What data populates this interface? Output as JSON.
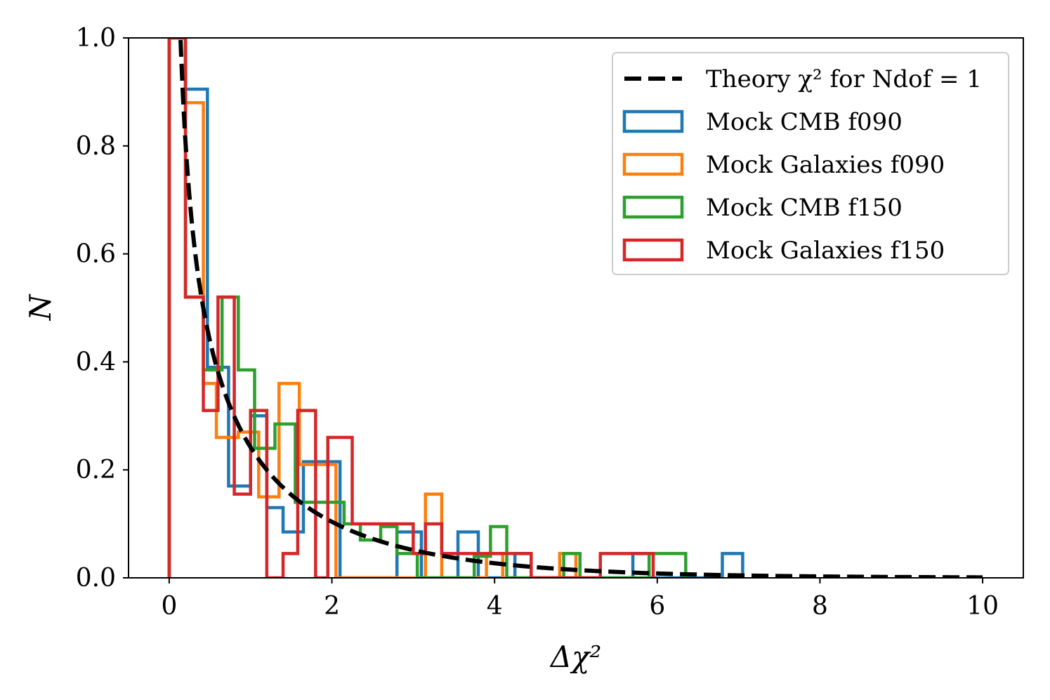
{
  "chart_data": {
    "type": "histogram-step",
    "xlabel": "Δχ²",
    "ylabel": "N",
    "xlim": [
      -0.5,
      10.5
    ],
    "ylim": [
      0,
      1.0
    ],
    "xticks": [
      "0",
      "2",
      "4",
      "6",
      "8",
      "10"
    ],
    "yticks": [
      "0.0",
      "0.2",
      "0.4",
      "0.6",
      "0.8",
      "1.0"
    ],
    "grid": false,
    "legend_position": "top-right",
    "series": [
      {
        "name": "Mock CMB f090",
        "color": "#1f77b4",
        "edges": [
          0,
          0.2,
          0.47,
          0.73,
          1.0,
          1.2,
          1.4,
          1.65,
          2.1,
          2.35,
          2.8,
          3.1,
          3.55,
          3.8,
          4.25,
          4.45,
          5.7,
          5.9,
          6.8,
          7.05
        ],
        "heights": [
          1.0,
          0.905,
          0.39,
          0.17,
          0.3,
          0.13,
          0.085,
          0.215,
          0.0,
          0.0,
          0.085,
          0.0,
          0.085,
          0.0,
          0.045,
          0.0,
          0.045,
          0.0,
          0.045
        ]
      },
      {
        "name": "Mock Galaxies f090",
        "color": "#ff7f0e",
        "edges": [
          0,
          0.2,
          0.42,
          0.58,
          0.85,
          1.1,
          1.35,
          1.6,
          2.05,
          3.15,
          3.35,
          3.55,
          3.9,
          4.1,
          4.8,
          5.0
        ],
        "heights": [
          1.0,
          0.88,
          0.36,
          0.26,
          0.27,
          0.15,
          0.36,
          0.21,
          0.0,
          0.155,
          0.0,
          0.0,
          0.045,
          0.0,
          0.045
        ]
      },
      {
        "name": "Mock CMB f150",
        "color": "#2ca02c",
        "edges": [
          0,
          0.2,
          0.42,
          0.65,
          0.85,
          1.05,
          1.3,
          1.55,
          1.95,
          2.15,
          2.35,
          2.6,
          2.8,
          3.05,
          3.75,
          3.95,
          4.15,
          4.85,
          5.05,
          5.3,
          5.9,
          6.35
        ],
        "heights": [
          1.0,
          0.52,
          0.385,
          0.52,
          0.385,
          0.24,
          0.285,
          0.14,
          0.14,
          0.1,
          0.07,
          0.095,
          0.045,
          0.0,
          0.04,
          0.095,
          0.0,
          0.045,
          0.0,
          0.0,
          0.045
        ]
      },
      {
        "name": "Mock Galaxies f150",
        "color": "#d62728",
        "edges": [
          0,
          0.2,
          0.42,
          0.6,
          0.8,
          1.0,
          1.2,
          1.4,
          1.58,
          1.8,
          1.95,
          2.25,
          2.65,
          2.8,
          3.0,
          3.15,
          3.35,
          3.55,
          3.85,
          4.25,
          4.45,
          5.3,
          5.55,
          5.75,
          5.95
        ],
        "heights": [
          1.0,
          0.52,
          0.31,
          0.52,
          0.155,
          0.31,
          0.0,
          0.045,
          0.31,
          0.0,
          0.26,
          0.1,
          0.1,
          0.1,
          0.045,
          0.1,
          0.045,
          0.045,
          0.045,
          0.045,
          0.0,
          0.045,
          0.045,
          0.045
        ]
      }
    ],
    "theory": {
      "name": "Theory χ² for Ndof = 1",
      "color": "#000000",
      "style": "dashed",
      "xmin": 0.12,
      "xmax": 10.0
    }
  },
  "legend": {
    "entries": [
      {
        "label": "Theory χ² for Ndof = 1",
        "kind": "dashed",
        "color": "#000000"
      },
      {
        "label": "Mock CMB f090",
        "kind": "box",
        "color": "#1f77b4"
      },
      {
        "label": "Mock Galaxies f090",
        "kind": "box",
        "color": "#ff7f0e"
      },
      {
        "label": "Mock CMB f150",
        "kind": "box",
        "color": "#2ca02c"
      },
      {
        "label": "Mock Galaxies f150",
        "kind": "box",
        "color": "#d62728"
      }
    ]
  }
}
